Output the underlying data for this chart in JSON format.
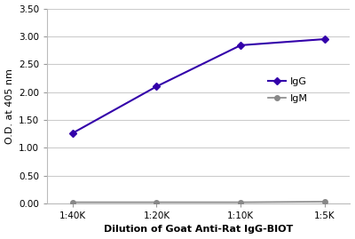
{
  "x_labels": [
    "1:40K",
    "1:20K",
    "1:10K",
    "1:5K"
  ],
  "x_values": [
    1,
    2,
    3,
    4
  ],
  "IgG_values": [
    1.26,
    2.1,
    2.84,
    2.95
  ],
  "IgM_values": [
    0.02,
    0.02,
    0.02,
    0.03
  ],
  "IgG_color": "#3300aa",
  "IgM_color": "#888888",
  "ylabel": "O.D. at 405 nm",
  "xlabel": "Dilution of Goat Anti-Rat IgG-BIOT",
  "ylim": [
    0.0,
    3.5
  ],
  "yticks": [
    0.0,
    0.5,
    1.0,
    1.5,
    2.0,
    2.5,
    3.0,
    3.5
  ],
  "plot_bg": "#ffffff",
  "fig_bg": "#ffffff",
  "grid_color": "#cccccc",
  "legend_labels": [
    "IgG",
    "IgM"
  ]
}
